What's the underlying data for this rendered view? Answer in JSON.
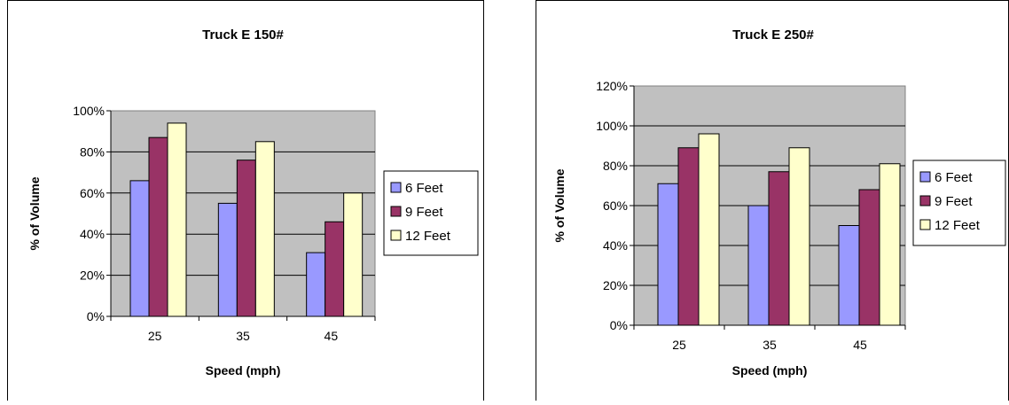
{
  "colors": {
    "plot_bg": "#C0C0C0",
    "series": [
      "#9999FF",
      "#993366",
      "#FFFFCC"
    ]
  },
  "chart_data": [
    {
      "type": "bar",
      "title": "Truck E 150#",
      "xlabel": "Speed (mph)",
      "ylabel": "% of Volume",
      "categories": [
        "25",
        "35",
        "45"
      ],
      "ylim": [
        0,
        100
      ],
      "yticks": [
        "0%",
        "20%",
        "40%",
        "60%",
        "80%",
        "100%"
      ],
      "grid": true,
      "legend": "right",
      "series": [
        {
          "name": "6 Feet",
          "values": [
            66,
            55,
            31
          ]
        },
        {
          "name": "9 Feet",
          "values": [
            87,
            76,
            46
          ]
        },
        {
          "name": "12 Feet",
          "values": [
            94,
            85,
            60
          ]
        }
      ]
    },
    {
      "type": "bar",
      "title": "Truck E  250#",
      "xlabel": "Speed (mph)",
      "ylabel": "% of Volume",
      "categories": [
        "25",
        "35",
        "45"
      ],
      "ylim": [
        0,
        120
      ],
      "yticks": [
        "0%",
        "20%",
        "40%",
        "60%",
        "80%",
        "100%",
        "120%"
      ],
      "grid": true,
      "legend": "right",
      "series": [
        {
          "name": "6 Feet",
          "values": [
            71,
            60,
            50
          ]
        },
        {
          "name": "9 Feet",
          "values": [
            89,
            77,
            68
          ]
        },
        {
          "name": "12 Feet",
          "values": [
            96,
            89,
            81
          ]
        }
      ]
    }
  ]
}
